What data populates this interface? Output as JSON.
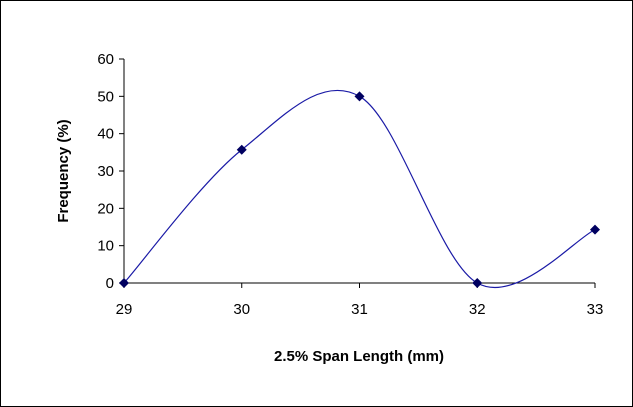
{
  "chart_data": {
    "type": "line",
    "smoothed": true,
    "x": [
      29,
      30,
      31,
      32,
      33
    ],
    "series": [
      {
        "values": [
          0,
          35.7,
          50,
          0,
          14.3
        ],
        "color": "#1a1aa6",
        "marker": "diamond",
        "marker_color": "#000060"
      }
    ],
    "xlabel": "2.5% Span Length (mm)",
    "ylabel": "Frequency (%)",
    "xlim": [
      29,
      33
    ],
    "ylim": [
      0,
      60
    ],
    "xticks": [
      "29",
      "30",
      "31",
      "32",
      "33"
    ],
    "yticks": [
      "0",
      "10",
      "20",
      "30",
      "40",
      "50",
      "60"
    ],
    "grid": false,
    "legend": "none"
  }
}
